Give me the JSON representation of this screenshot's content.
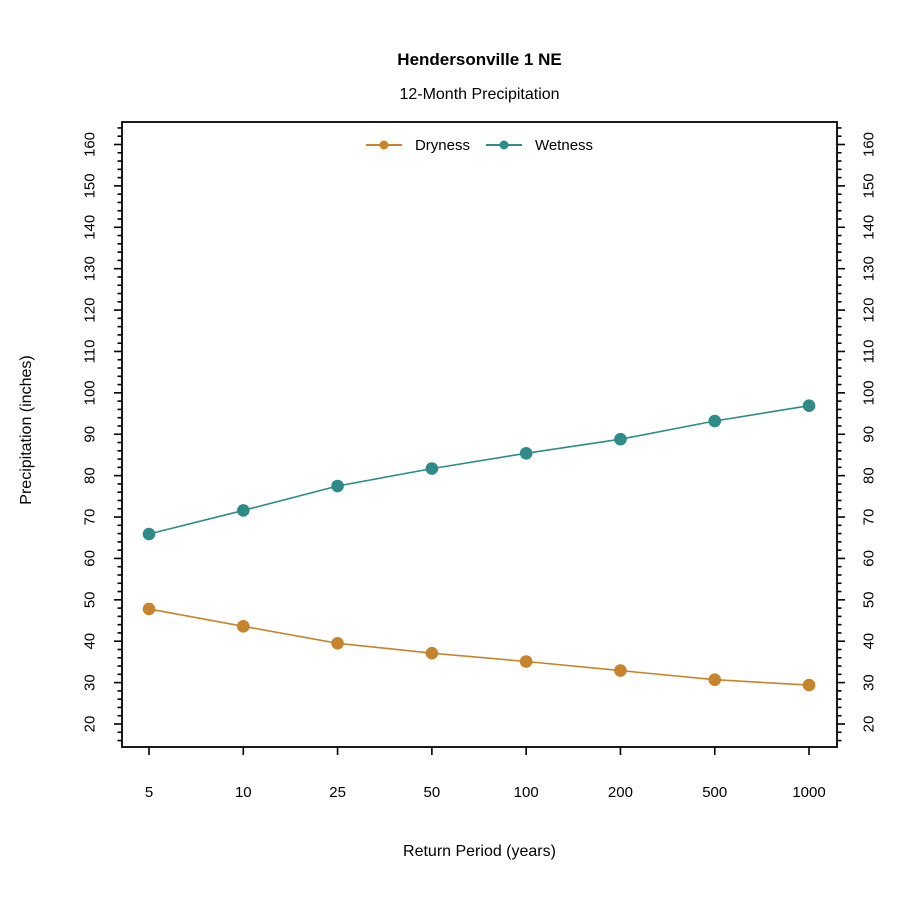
{
  "chart_data": {
    "type": "line",
    "title": "Hendersonville 1 NE",
    "subtitle": "12-Month Precipitation",
    "xlabel": "Return Period (years)",
    "ylabel": "Precipitation (inches)",
    "categories": [
      5,
      10,
      25,
      50,
      100,
      200,
      500,
      1000
    ],
    "series": [
      {
        "name": "Dryness",
        "color": "#C6842C",
        "values": [
          47.8,
          43.6,
          39.5,
          37.1,
          35.1,
          32.9,
          30.7,
          29.4
        ]
      },
      {
        "name": "Wetness",
        "color": "#2E8B87",
        "values": [
          65.9,
          71.6,
          77.5,
          81.7,
          85.4,
          88.8,
          93.2,
          96.9
        ]
      }
    ],
    "ylim": [
      20,
      160
    ],
    "y_ticks": [
      20,
      30,
      40,
      50,
      60,
      70,
      80,
      90,
      100,
      110,
      120,
      130,
      140,
      150,
      160
    ],
    "y_minor_step": 2,
    "y_major_step": 10,
    "grid": false,
    "legend_position": "top-center",
    "axes": {
      "frame": true,
      "right_axis_mirrored": true,
      "axis_color": "#000000"
    }
  }
}
